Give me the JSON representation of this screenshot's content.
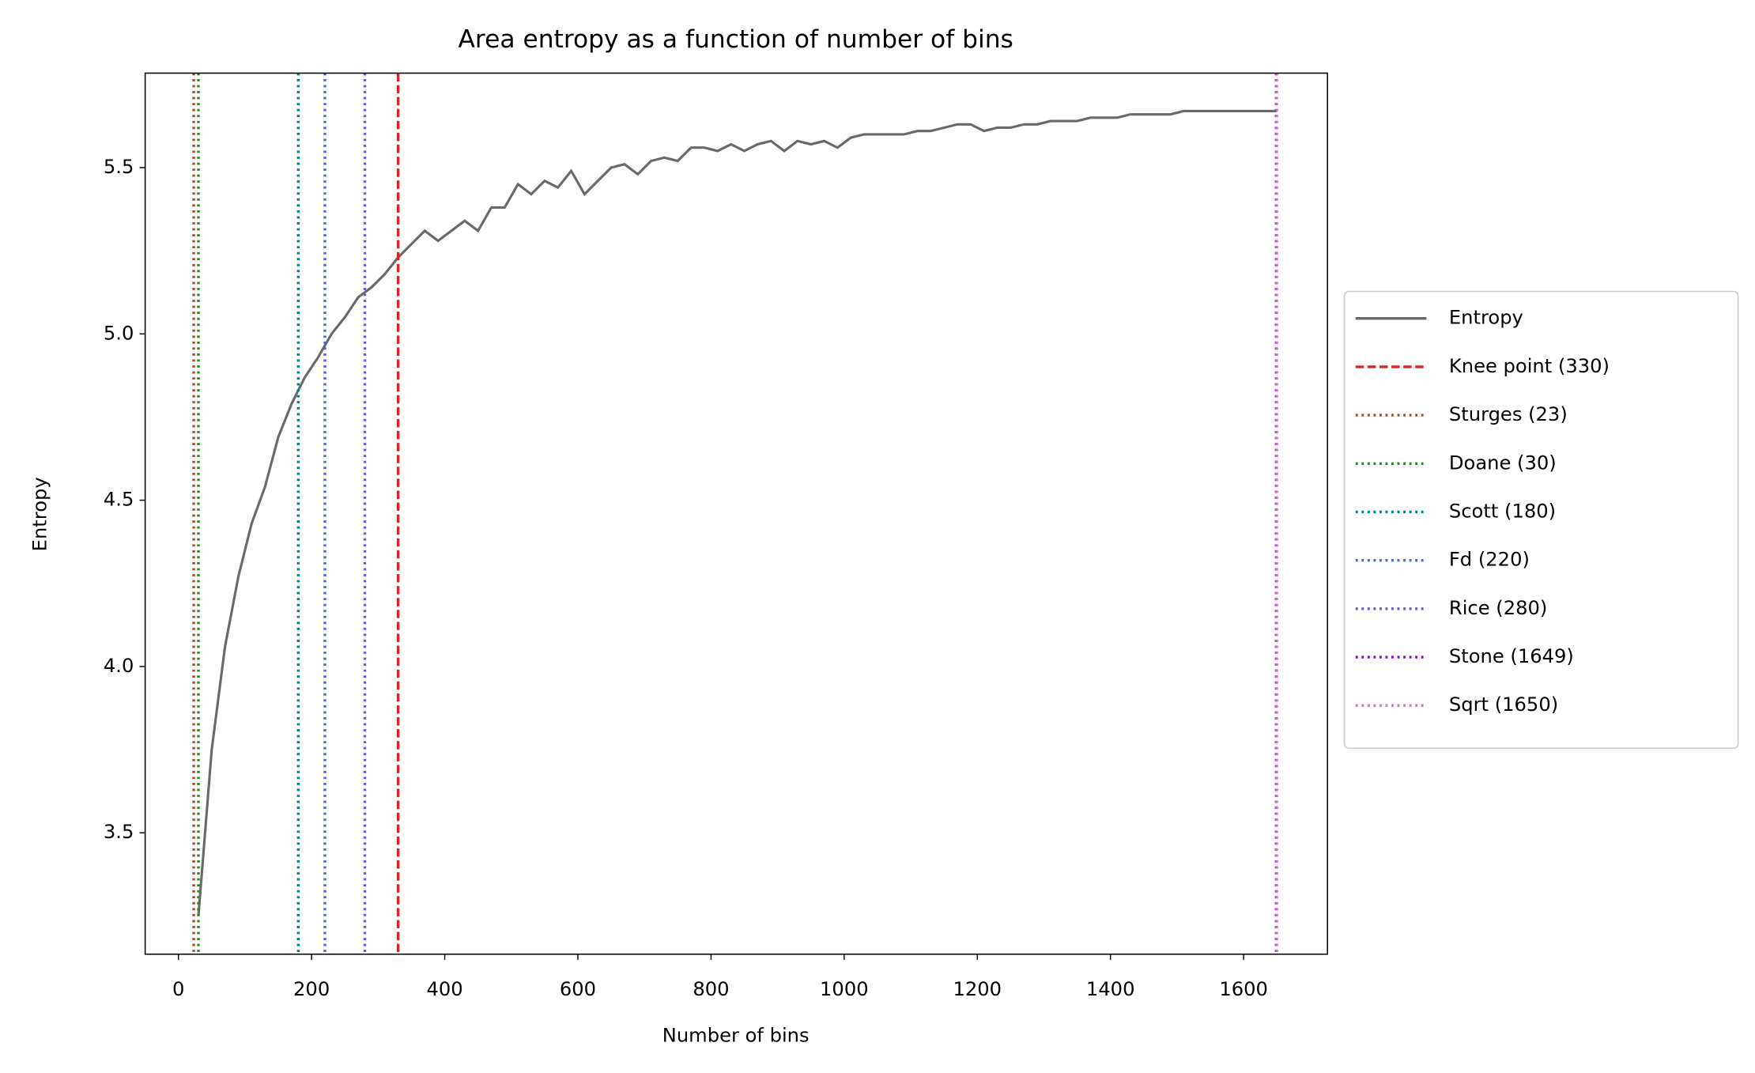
{
  "chart_data": {
    "type": "line",
    "title": "Area entropy as a function of number of bins",
    "xlabel": "Number of bins",
    "ylabel": "Entropy",
    "xlim": [
      -50,
      1726
    ],
    "ylim": [
      3.135,
      5.784
    ],
    "xticks": [
      0,
      200,
      400,
      600,
      800,
      1000,
      1200,
      1400,
      1600
    ],
    "yticks": [
      3.5,
      {
        "value": 4,
        "label": "4.0"
      },
      4.5,
      {
        "value": 5,
        "label": "5.0"
      },
      5.5
    ],
    "grid": false,
    "legend_position": "right",
    "series": [
      {
        "name": "Entropy",
        "color": "#696969",
        "x": [
          30,
          50,
          70,
          90,
          110,
          130,
          150,
          170,
          190,
          210,
          230,
          250,
          270,
          290,
          310,
          330,
          350,
          370,
          390,
          410,
          430,
          450,
          470,
          490,
          510,
          530,
          550,
          570,
          590,
          610,
          630,
          650,
          670,
          690,
          710,
          730,
          750,
          770,
          790,
          810,
          830,
          850,
          870,
          890,
          910,
          930,
          950,
          970,
          990,
          1010,
          1030,
          1050,
          1070,
          1090,
          1110,
          1130,
          1150,
          1170,
          1190,
          1210,
          1230,
          1250,
          1270,
          1290,
          1310,
          1330,
          1350,
          1370,
          1390,
          1410,
          1430,
          1450,
          1470,
          1490,
          1510,
          1530,
          1550,
          1570,
          1590,
          1610,
          1630,
          1650
        ],
        "values": [
          3.25,
          3.75,
          4.06,
          4.27,
          4.43,
          4.54,
          4.69,
          4.79,
          4.87,
          4.93,
          5.0,
          5.05,
          5.11,
          5.14,
          5.18,
          5.23,
          5.27,
          5.31,
          5.28,
          5.31,
          5.34,
          5.31,
          5.38,
          5.38,
          5.45,
          5.42,
          5.46,
          5.44,
          5.49,
          5.42,
          5.46,
          5.5,
          5.51,
          5.48,
          5.52,
          5.53,
          5.52,
          5.56,
          5.56,
          5.55,
          5.57,
          5.55,
          5.57,
          5.58,
          5.55,
          5.58,
          5.57,
          5.58,
          5.56,
          5.59,
          5.6,
          5.6,
          5.6,
          5.6,
          5.61,
          5.61,
          5.62,
          5.63,
          5.63,
          5.61,
          5.62,
          5.62,
          5.63,
          5.63,
          5.64,
          5.64,
          5.64,
          5.65,
          5.65,
          5.65,
          5.66,
          5.66,
          5.66,
          5.66,
          5.67,
          5.67,
          5.67,
          5.67,
          5.67,
          5.67,
          5.67,
          5.67
        ]
      }
    ],
    "vlines": [
      {
        "name": "Knee point (330)",
        "value": 330,
        "color": "#d62728",
        "style": "dashed"
      },
      {
        "name": "Sturges (23)",
        "value": 23,
        "color": "#a0522d",
        "style": "dotted"
      },
      {
        "name": "Doane (30)",
        "value": 30,
        "color": "#228b22",
        "style": "dotted"
      },
      {
        "name": "Scott (180)",
        "value": 180,
        "color": "#008080",
        "style": "dotted"
      },
      {
        "name": "Fd (220)",
        "value": 220,
        "color": "#4169e1",
        "style": "dotted"
      },
      {
        "name": "Rice (280)",
        "value": 280,
        "color": "#6a5acd",
        "style": "dotted"
      },
      {
        "name": "Stone (1649)",
        "value": 1649,
        "color": "#9400d3",
        "style": "dotted"
      },
      {
        "name": "Sqrt (1650)",
        "value": 1650,
        "color": "#da70d6",
        "style": "dotted"
      }
    ]
  }
}
